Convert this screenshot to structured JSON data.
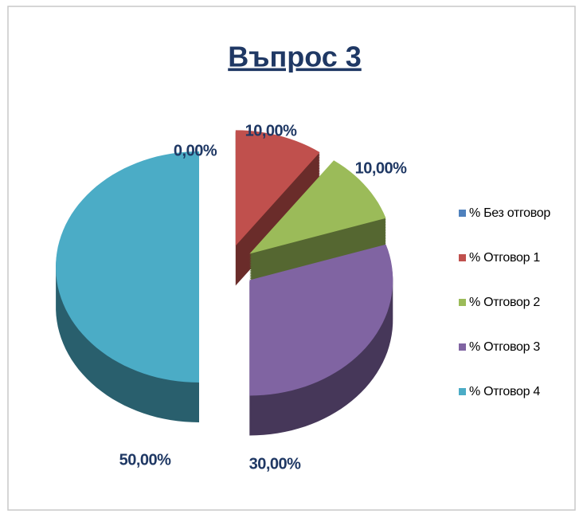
{
  "chart_data": {
    "type": "pie",
    "title": "Въпрос 3",
    "categories": [
      "% Без отговор",
      "% Отговор 1",
      "% Отговор 2",
      "% Отговор 3",
      "% Отговор 4"
    ],
    "values": [
      0,
      10,
      10,
      30,
      50
    ],
    "value_labels": [
      "0,00%",
      "10,00%",
      "10,00%",
      "30,00%",
      "50,00%"
    ],
    "colors": [
      "#4f81bd",
      "#c0504d",
      "#9bbb59",
      "#8064a2",
      "#4bacc6"
    ],
    "legend": "right"
  }
}
